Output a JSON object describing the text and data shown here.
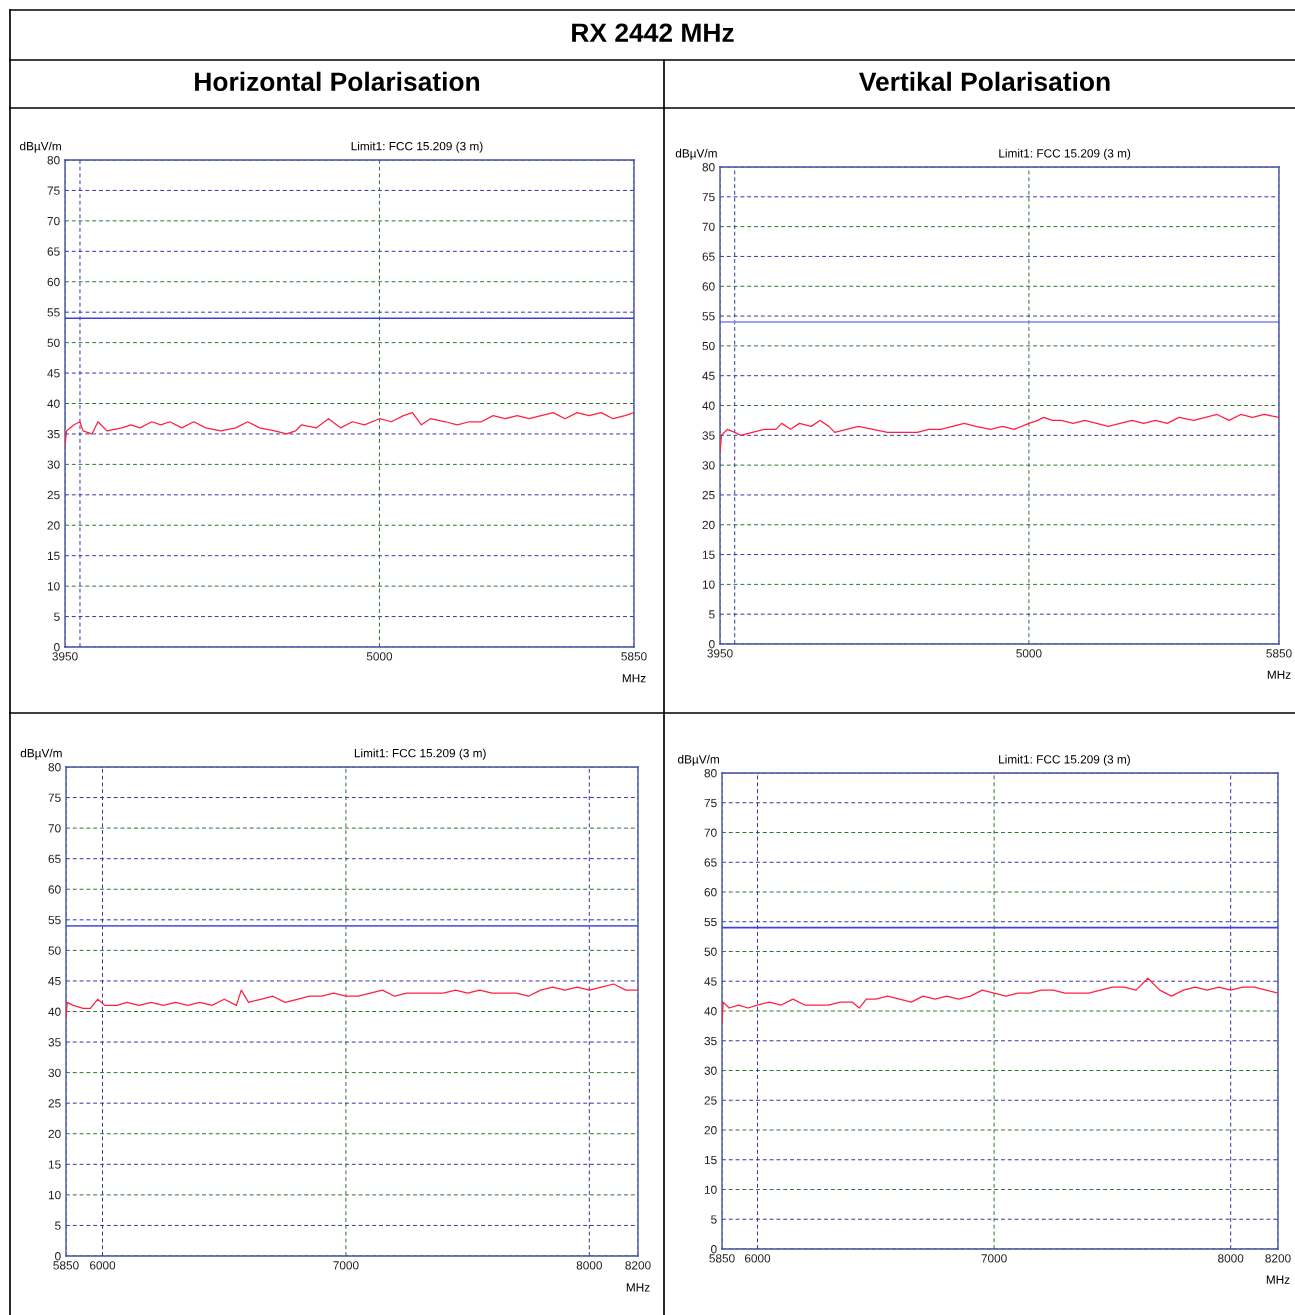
{
  "chart_data": [
    {
      "type": "line",
      "title": "RX 2442 MHz",
      "subtitle": "Horizontal Polarisation",
      "ylabel": "dBµV/m",
      "xlabel": "MHz",
      "annotations": [
        "Limit1: FCC 15.209 (3 m)"
      ],
      "xlim": [
        3950,
        5850
      ],
      "xticks": [
        3950,
        {
          "value": 4000,
          "label": null
        },
        5000,
        5850
      ],
      "ylim": [
        0,
        80
      ],
      "yticks": [
        0,
        5,
        10,
        15,
        20,
        25,
        30,
        35,
        40,
        45,
        50,
        55,
        60,
        65,
        70,
        75,
        80
      ],
      "grid": true,
      "line_style": "solid",
      "ref_lines": [
        {
          "axis": "y",
          "value": 54,
          "color": "#4040e0"
        }
      ],
      "series": [
        {
          "color": "#ff2040",
          "x": [
            3950,
            3955,
            3980,
            4000,
            4010,
            4040,
            4060,
            4090,
            4140,
            4170,
            4200,
            4240,
            4270,
            4300,
            4340,
            4380,
            4420,
            4470,
            4520,
            4560,
            4600,
            4650,
            4690,
            4720,
            4740,
            4790,
            4830,
            4870,
            4910,
            4950,
            5000,
            5040,
            5080,
            5110,
            5140,
            5170,
            5220,
            5260,
            5300,
            5340,
            5380,
            5420,
            5460,
            5500,
            5540,
            5580,
            5620,
            5660,
            5700,
            5740,
            5780,
            5820,
            5850
          ],
          "values": [
            33,
            35.5,
            36.5,
            37,
            35.5,
            35,
            37,
            35.5,
            36,
            36.5,
            36,
            37,
            36.5,
            37,
            36,
            37,
            36,
            35.5,
            36,
            37,
            36,
            35.5,
            35,
            35.5,
            36.5,
            36,
            37.5,
            36,
            37,
            36.5,
            37.5,
            37,
            38,
            38.5,
            36.5,
            37.5,
            37,
            36.5,
            37,
            37,
            38,
            37.5,
            38,
            37.5,
            38,
            38.5,
            37.5,
            38.5,
            38,
            38.5,
            37.5,
            38,
            38.5
          ]
        }
      ]
    },
    {
      "type": "line",
      "subtitle": "Vertikal Polarisation",
      "ylabel": "dBµV/m",
      "xlabel": "MHz",
      "annotations": [
        "Limit1: FCC 15.209 (3 m)"
      ],
      "xlim": [
        3950,
        5850
      ],
      "xticks": [
        3950,
        {
          "value": 4000,
          "label": null
        },
        5000,
        5850
      ],
      "ylim": [
        0,
        80
      ],
      "yticks": [
        0,
        5,
        10,
        15,
        20,
        25,
        30,
        35,
        40,
        45,
        50,
        55,
        60,
        65,
        70,
        75,
        80
      ],
      "grid": true,
      "line_style": "solid",
      "ref_lines": [
        {
          "axis": "y",
          "value": 54,
          "color": "#8080f0"
        }
      ],
      "series": [
        {
          "color": "#ff2040",
          "x": [
            3950,
            3955,
            3975,
            4000,
            4020,
            4060,
            4100,
            4140,
            4160,
            4190,
            4220,
            4260,
            4290,
            4320,
            4340,
            4380,
            4420,
            4470,
            4520,
            4580,
            4620,
            4660,
            4700,
            4740,
            4780,
            4820,
            4870,
            4910,
            4950,
            5000,
            5030,
            5050,
            5080,
            5110,
            5150,
            5190,
            5230,
            5270,
            5310,
            5350,
            5390,
            5430,
            5470,
            5510,
            5560,
            5600,
            5640,
            5680,
            5720,
            5760,
            5800,
            5850
          ],
          "values": [
            32,
            35,
            36,
            35.5,
            35,
            35.5,
            36,
            36,
            37,
            36,
            37,
            36.5,
            37.5,
            36.5,
            35.5,
            36,
            36.5,
            36,
            35.5,
            35.5,
            35.5,
            36,
            36,
            36.5,
            37,
            36.5,
            36,
            36.5,
            36,
            37,
            37.5,
            38,
            37.5,
            37.5,
            37,
            37.5,
            37,
            36.5,
            37,
            37.5,
            37,
            37.5,
            37,
            38,
            37.5,
            38,
            38.5,
            37.5,
            38.5,
            38,
            38.5,
            38
          ]
        }
      ]
    },
    {
      "type": "line",
      "ylabel": "dBµV/m",
      "xlabel": "MHz",
      "annotations": [
        "Limit1: FCC 15.209 (3 m)"
      ],
      "xlim": [
        5850,
        8200
      ],
      "xticks": [
        5850,
        6000,
        7000,
        8000,
        8200
      ],
      "ylim": [
        0,
        80
      ],
      "yticks": [
        0,
        5,
        10,
        15,
        20,
        25,
        30,
        35,
        40,
        45,
        50,
        55,
        60,
        65,
        70,
        75,
        80
      ],
      "grid": true,
      "line_style": "solid",
      "ref_lines": [
        {
          "axis": "y",
          "value": 54,
          "color": "#6060e0"
        }
      ],
      "series": [
        {
          "color": "#ff2040",
          "x": [
            5850,
            5855,
            5880,
            5920,
            5950,
            5980,
            6010,
            6060,
            6100,
            6150,
            6200,
            6250,
            6300,
            6350,
            6400,
            6450,
            6500,
            6550,
            6570,
            6600,
            6650,
            6700,
            6750,
            6800,
            6850,
            6900,
            6950,
            7000,
            7050,
            7100,
            7150,
            7200,
            7250,
            7300,
            7350,
            7400,
            7450,
            7500,
            7550,
            7600,
            7650,
            7700,
            7750,
            7800,
            7850,
            7900,
            7950,
            8000,
            8050,
            8100,
            8150,
            8200
          ],
          "values": [
            39,
            41.5,
            41,
            40.5,
            40.5,
            42,
            41,
            41,
            41.5,
            41,
            41.5,
            41,
            41.5,
            41,
            41.5,
            41,
            42,
            41,
            43.5,
            41.5,
            42,
            42.5,
            41.5,
            42,
            42.5,
            42.5,
            43,
            42.5,
            42.5,
            43,
            43.5,
            42.5,
            43,
            43,
            43,
            43,
            43.5,
            43,
            43.5,
            43,
            43,
            43,
            42.5,
            43.5,
            44,
            43.5,
            44,
            43.5,
            44,
            44.5,
            43.5,
            43.5
          ]
        }
      ]
    },
    {
      "type": "line",
      "ylabel": "dBµV/m",
      "xlabel": "MHz",
      "annotations": [
        "Limit1: FCC 15.209 (3 m)"
      ],
      "xlim": [
        5850,
        8200
      ],
      "xticks": [
        5850,
        6000,
        7000,
        8000,
        8200
      ],
      "ylim": [
        0,
        80
      ],
      "yticks": [
        0,
        5,
        10,
        15,
        20,
        25,
        30,
        35,
        40,
        45,
        50,
        55,
        60,
        65,
        70,
        75,
        80
      ],
      "grid": true,
      "line_style": "solid",
      "ref_lines": [
        {
          "axis": "y",
          "value": 54,
          "color": "#4040e0"
        }
      ],
      "series": [
        {
          "color": "#ff2040",
          "x": [
            5850,
            5855,
            5880,
            5920,
            5960,
            6000,
            6050,
            6100,
            6150,
            6200,
            6250,
            6300,
            6350,
            6400,
            6430,
            6460,
            6500,
            6550,
            6600,
            6650,
            6700,
            6750,
            6800,
            6850,
            6900,
            6950,
            7000,
            7050,
            7100,
            7150,
            7200,
            7250,
            7300,
            7350,
            7400,
            7450,
            7500,
            7550,
            7600,
            7650,
            7700,
            7750,
            7800,
            7850,
            7900,
            7950,
            8000,
            8050,
            8100,
            8150,
            8200
          ],
          "values": [
            38,
            41.5,
            40.5,
            41,
            40.5,
            41,
            41.5,
            41,
            42,
            41,
            41,
            41,
            41.5,
            41.5,
            40.5,
            42,
            42,
            42.5,
            42,
            41.5,
            42.5,
            42,
            42.5,
            42,
            42.5,
            43.5,
            43,
            42.5,
            43,
            43,
            43.5,
            43.5,
            43,
            43,
            43,
            43.5,
            44,
            44,
            43.5,
            45.5,
            43.5,
            42.5,
            43.5,
            44,
            43.5,
            44,
            43.5,
            44,
            44,
            43.5,
            43
          ]
        }
      ]
    }
  ]
}
